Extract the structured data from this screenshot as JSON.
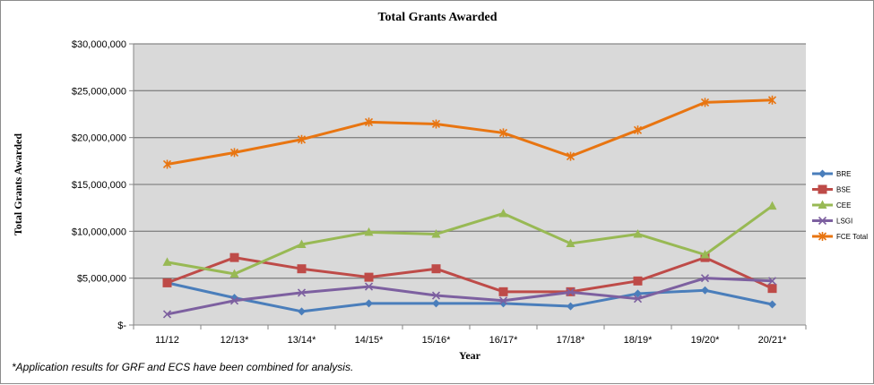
{
  "chart_data": {
    "type": "line",
    "title": "Total Grants Awarded",
    "xlabel": "Year",
    "ylabel": "Total Grants Awarded",
    "ylim": [
      0,
      30000000
    ],
    "yticks": [
      "$-",
      "$5,000,000",
      "$10,000,000",
      "$15,000,000",
      "$20,000,000",
      "$25,000,000",
      "$30,000,000"
    ],
    "grid": true,
    "legend": "right",
    "categories": [
      "11/12",
      "12/13*",
      "13/14*",
      "14/15*",
      "15/16*",
      "16/17*",
      "17/18*",
      "18/19*",
      "19/20*",
      "20/21*"
    ],
    "series": [
      {
        "name": "BRE",
        "color": "#4a7ebb",
        "marker": "diamond",
        "values": [
          4500000,
          2900000,
          1450000,
          2300000,
          2300000,
          2300000,
          2000000,
          3350000,
          3700000,
          2200000
        ]
      },
      {
        "name": "BSE",
        "color": "#be4b48",
        "marker": "square",
        "values": [
          4500000,
          7200000,
          6000000,
          5100000,
          6000000,
          3550000,
          3550000,
          4700000,
          7200000,
          3900000
        ]
      },
      {
        "name": "CEE",
        "color": "#98b954",
        "marker": "triangle",
        "values": [
          6700000,
          5450000,
          8600000,
          9900000,
          9700000,
          11900000,
          8700000,
          9700000,
          7500000,
          12700000
        ]
      },
      {
        "name": "LSGI",
        "color": "#7d60a0",
        "marker": "x",
        "values": [
          1150000,
          2600000,
          3450000,
          4100000,
          3150000,
          2600000,
          3500000,
          2800000,
          5000000,
          4700000
        ]
      },
      {
        "name": "FCE Total",
        "color": "#e87511",
        "marker": "star",
        "values": [
          17150000,
          18400000,
          19800000,
          21650000,
          21450000,
          20500000,
          18000000,
          20800000,
          23750000,
          24000000
        ]
      }
    ]
  },
  "footnote": "*Application results for GRF and ECS have been combined for analysis."
}
